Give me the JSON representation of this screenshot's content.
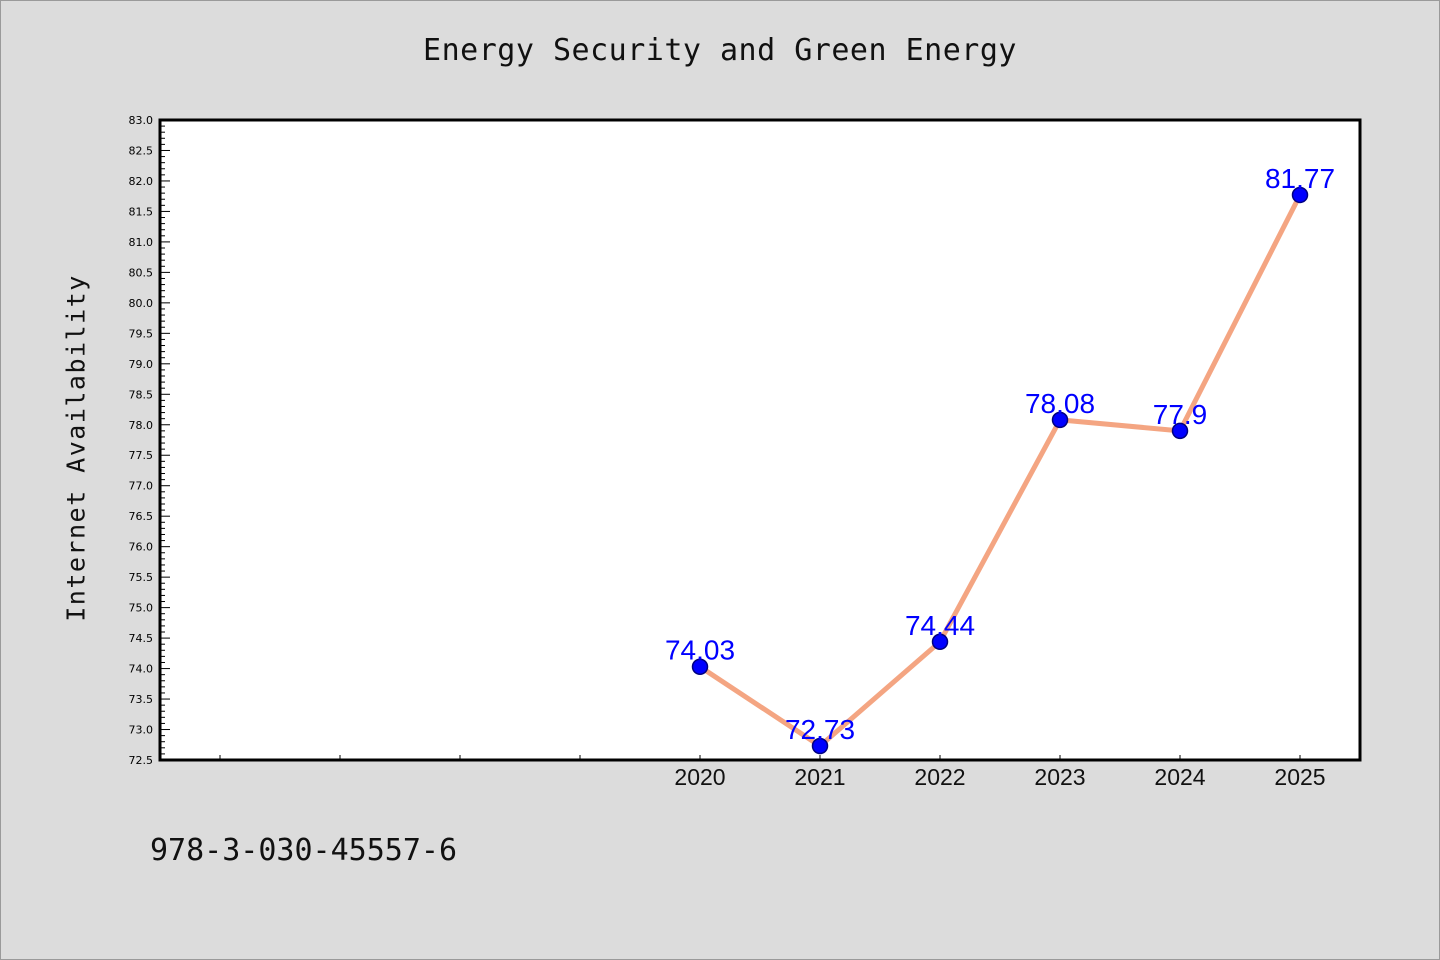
{
  "chart_data": {
    "type": "line",
    "title": "Energy Security and Green Energy",
    "xlabel": "",
    "ylabel": "Internet Availability",
    "categories": [
      "2020",
      "2021",
      "2022",
      "2023",
      "2024",
      "2025"
    ],
    "values": [
      74.03,
      72.73,
      74.44,
      78.08,
      77.9,
      81.77
    ],
    "value_labels": [
      "74.03",
      "72.73",
      "74.44",
      "78.08",
      "77.9",
      "81.77"
    ],
    "ylim": [
      72.5,
      83.0
    ],
    "yticks": [
      "72.5",
      "73.0",
      "73.5",
      "74.0",
      "74.5",
      "75.0",
      "75.5",
      "76.0",
      "76.5",
      "77.0",
      "77.5",
      "78.0",
      "78.5",
      "79.0",
      "79.5",
      "80.0",
      "80.5",
      "81.0",
      "81.5",
      "82.0",
      "82.5",
      "83.0"
    ],
    "grid": false,
    "legend": "none",
    "colors": {
      "line": "#f4a582",
      "marker": "#0000ff",
      "marker_edge": "#000080",
      "data_label": "#0000ff",
      "plot_background": "#ffffff",
      "page_background": "#dcdcdc"
    }
  },
  "footer": {
    "isbn": "978-3-030-45557-6"
  }
}
